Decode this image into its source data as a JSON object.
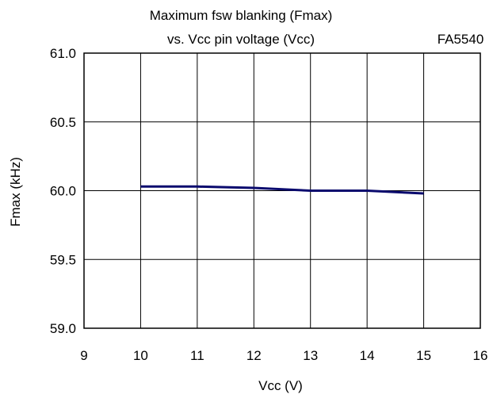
{
  "chart_data": {
    "type": "line",
    "title_line1": "Maximum fsw blanking (Fmax)",
    "title_line2": "vs. Vcc pin voltage (Vcc)",
    "part_label": "FA5540",
    "xlabel": "Vcc (V)",
    "ylabel": "Fmax (kHz)",
    "xlim": [
      9,
      16
    ],
    "ylim": [
      59.0,
      61.0
    ],
    "x_ticks": [
      "9",
      "10",
      "11",
      "12",
      "13",
      "14",
      "15",
      "16"
    ],
    "y_ticks": [
      "61.0",
      "60.5",
      "60.0",
      "59.5",
      "59.0"
    ],
    "grid": true,
    "series": [
      {
        "color": "#0a0a6e",
        "x": [
          10,
          11,
          12,
          13,
          14,
          15
        ],
        "y": [
          60.03,
          60.03,
          60.02,
          60.0,
          60.0,
          59.98
        ]
      }
    ]
  }
}
